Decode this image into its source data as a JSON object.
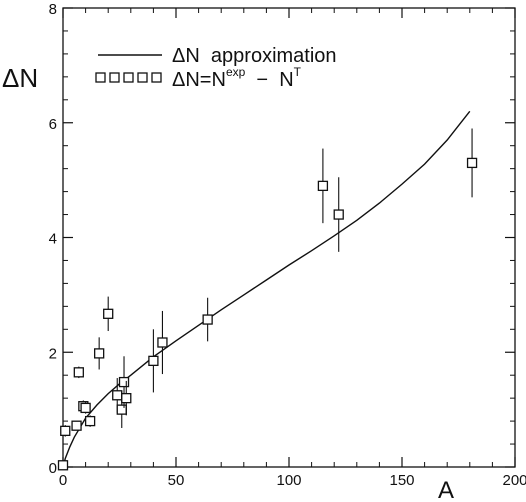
{
  "chart_data": {
    "type": "scatter",
    "xlabel": "A",
    "ylabel": "ΔN",
    "xlim": [
      0,
      200
    ],
    "ylim": [
      0,
      8
    ],
    "x_ticks": [
      0,
      50,
      100,
      150,
      200
    ],
    "y_ticks": [
      0,
      2,
      4,
      6,
      8
    ],
    "x_tick_labels": [
      "0",
      "50",
      "100",
      "150",
      "200"
    ],
    "y_tick_labels": [
      "0",
      "2",
      "4",
      "6",
      "8"
    ],
    "legend": {
      "placement": "top-left",
      "entries": [
        {
          "label": "ΔN  approximation",
          "marker": "line"
        },
        {
          "label": "ΔN=N^exp − N^T",
          "marker": "open-square"
        }
      ],
      "line_text": "ΔN  approximation",
      "square_text_main": "ΔN=N",
      "square_text_sup1": "exp",
      "square_text_mid": "  −  N",
      "square_text_sup2": "T"
    },
    "series": [
      {
        "name": "ΔN  approximation",
        "kind": "line",
        "points": [
          {
            "x": 0,
            "y": 0
          },
          {
            "x": 1,
            "y": 0.15
          },
          {
            "x": 3,
            "y": 0.35
          },
          {
            "x": 5,
            "y": 0.52
          },
          {
            "x": 10,
            "y": 0.85
          },
          {
            "x": 15,
            "y": 1.08
          },
          {
            "x": 20,
            "y": 1.28
          },
          {
            "x": 25,
            "y": 1.45
          },
          {
            "x": 30,
            "y": 1.6
          },
          {
            "x": 40,
            "y": 1.92
          },
          {
            "x": 50,
            "y": 2.2
          },
          {
            "x": 60,
            "y": 2.47
          },
          {
            "x": 70,
            "y": 2.74
          },
          {
            "x": 80,
            "y": 3.0
          },
          {
            "x": 90,
            "y": 3.26
          },
          {
            "x": 100,
            "y": 3.52
          },
          {
            "x": 110,
            "y": 3.77
          },
          {
            "x": 120,
            "y": 4.03
          },
          {
            "x": 130,
            "y": 4.3
          },
          {
            "x": 140,
            "y": 4.6
          },
          {
            "x": 150,
            "y": 4.93
          },
          {
            "x": 160,
            "y": 5.28
          },
          {
            "x": 170,
            "y": 5.7
          },
          {
            "x": 180,
            "y": 6.2
          }
        ]
      },
      {
        "name": "ΔN=N^exp − N^T",
        "kind": "points",
        "points": [
          {
            "x": 0,
            "y": 0.03,
            "err": 0
          },
          {
            "x": 1,
            "y": 0.63,
            "err": 0.1
          },
          {
            "x": 6,
            "y": 0.72,
            "err": 0.07
          },
          {
            "x": 7,
            "y": 1.65,
            "err": 0.1
          },
          {
            "x": 9,
            "y": 1.06,
            "err": 0.1
          },
          {
            "x": 10,
            "y": 1.03,
            "err": 0.1
          },
          {
            "x": 12,
            "y": 0.8,
            "err": 0.1
          },
          {
            "x": 16,
            "y": 1.98,
            "err": 0.28
          },
          {
            "x": 20,
            "y": 2.67,
            "err": 0.3
          },
          {
            "x": 24,
            "y": 1.25,
            "err": 0.3
          },
          {
            "x": 26,
            "y": 1.0,
            "err": 0.32
          },
          {
            "x": 27,
            "y": 1.48,
            "err": 0.45
          },
          {
            "x": 28,
            "y": 1.2,
            "err": 0.3
          },
          {
            "x": 40,
            "y": 1.85,
            "err": 0.55
          },
          {
            "x": 44,
            "y": 2.17,
            "err": 0.55
          },
          {
            "x": 64,
            "y": 2.57,
            "err": 0.38
          },
          {
            "x": 115,
            "y": 4.9,
            "err": 0.65
          },
          {
            "x": 122,
            "y": 4.4,
            "err": 0.65
          },
          {
            "x": 181,
            "y": 5.3,
            "err": 0.6
          }
        ]
      }
    ],
    "grid": false
  }
}
